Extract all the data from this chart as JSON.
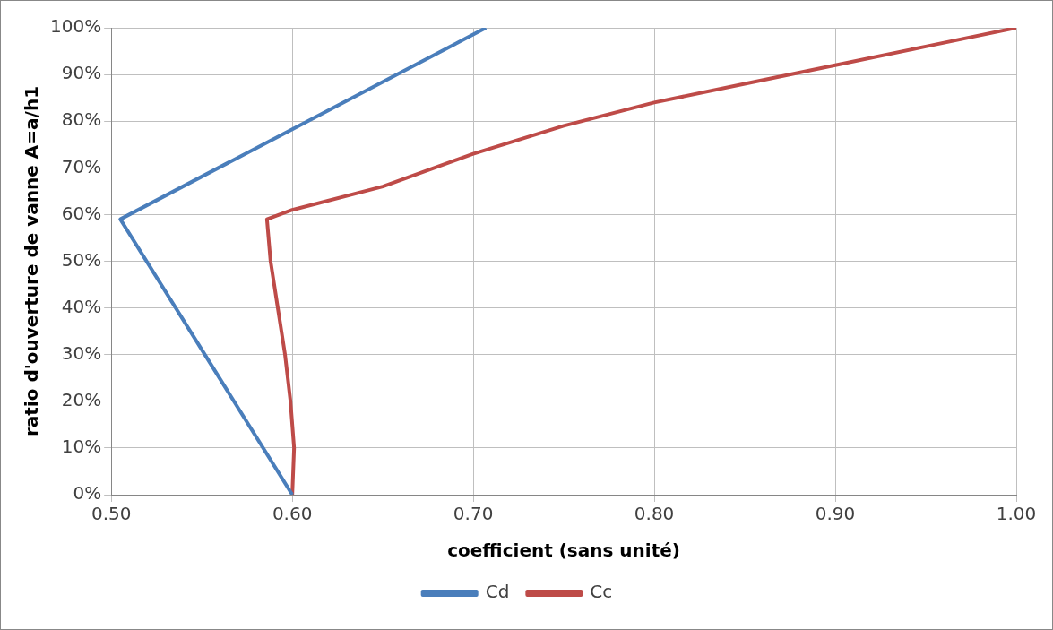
{
  "chart_data": {
    "type": "line",
    "xlabel": "coefficient (sans unité)",
    "ylabel": "ratio d'ouverture de vanne A=a/h1",
    "series": [
      {
        "name": "Cd",
        "color": "#4a7ebb",
        "x": [
          0.6,
          0.505,
          0.707
        ],
        "values": [
          0,
          59,
          100
        ]
      },
      {
        "name": "Cc",
        "color": "#be4b48",
        "x": [
          0.6,
          0.601,
          0.599,
          0.596,
          0.592,
          0.588,
          0.586,
          0.6,
          0.65,
          0.7,
          0.75,
          0.8,
          0.85,
          0.9,
          0.95,
          1.0
        ],
        "values": [
          0,
          10,
          20,
          30,
          40,
          50,
          59,
          61,
          66,
          73,
          79,
          84,
          88,
          92,
          96,
          100
        ]
      }
    ],
    "xlim": [
      0.5,
      1.0
    ],
    "xticks": [
      {
        "value": 0.5,
        "label": "0.50"
      },
      {
        "value": 0.6,
        "label": "0.60"
      },
      {
        "value": 0.7,
        "label": "0.70"
      },
      {
        "value": 0.8,
        "label": "0.80"
      },
      {
        "value": 0.9,
        "label": "0.90"
      },
      {
        "value": 1.0,
        "label": "1.00"
      }
    ],
    "ylim": [
      0,
      100
    ],
    "yticks": [
      {
        "value": 0,
        "label": "0%"
      },
      {
        "value": 10,
        "label": "10%"
      },
      {
        "value": 20,
        "label": "20%"
      },
      {
        "value": 30,
        "label": "30%"
      },
      {
        "value": 40,
        "label": "40%"
      },
      {
        "value": 50,
        "label": "50%"
      },
      {
        "value": 60,
        "label": "60%"
      },
      {
        "value": 70,
        "label": "70%"
      },
      {
        "value": 80,
        "label": "80%"
      },
      {
        "value": 90,
        "label": "90%"
      },
      {
        "value": 100,
        "label": "100%"
      }
    ],
    "grid": true,
    "legend": "bottom",
    "marker": "none",
    "line_style": "solid"
  }
}
